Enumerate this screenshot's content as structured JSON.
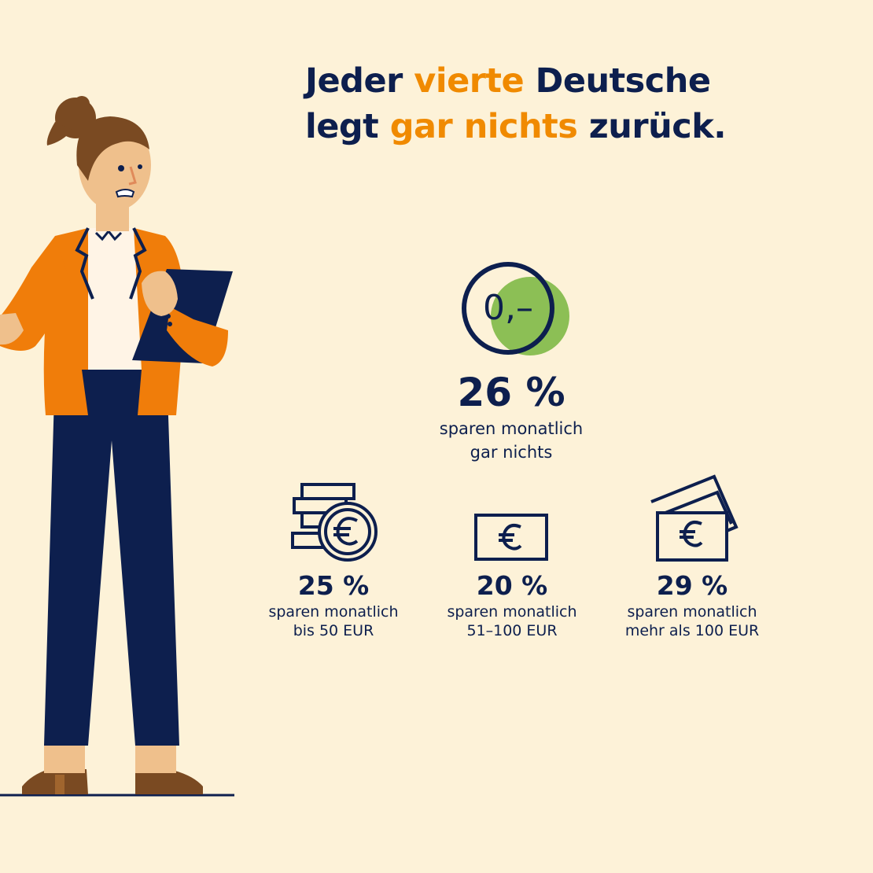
{
  "headline": {
    "line1": {
      "a": "Jeder ",
      "accent": "vierte",
      "b": " Deutsche"
    },
    "line2": {
      "a": "legt ",
      "accent": "gar nichts",
      "b": " zurück."
    }
  },
  "main_stat": {
    "icon_text": "0,–",
    "percent": "26 %",
    "desc_line1": "sparen monatlich",
    "desc_line2": "gar nichts"
  },
  "stats": [
    {
      "percent": "25 %",
      "desc_line1": "sparen monatlich",
      "desc_line2": "bis 50 EUR",
      "icon": "coins-euro-icon"
    },
    {
      "percent": "20 %",
      "desc_line1": "sparen monatlich",
      "desc_line2": "51–100 EUR",
      "icon": "banknote-euro-icon"
    },
    {
      "percent": "29 %",
      "desc_line1": "sparen monatlich",
      "desc_line2": "mehr als 100 EUR",
      "icon": "banknotes-euro-icon"
    }
  ],
  "colors": {
    "background": "#fdf2d8",
    "navy": "#0d1f4e",
    "orange": "#f08a00",
    "green": "#8cbf55"
  }
}
